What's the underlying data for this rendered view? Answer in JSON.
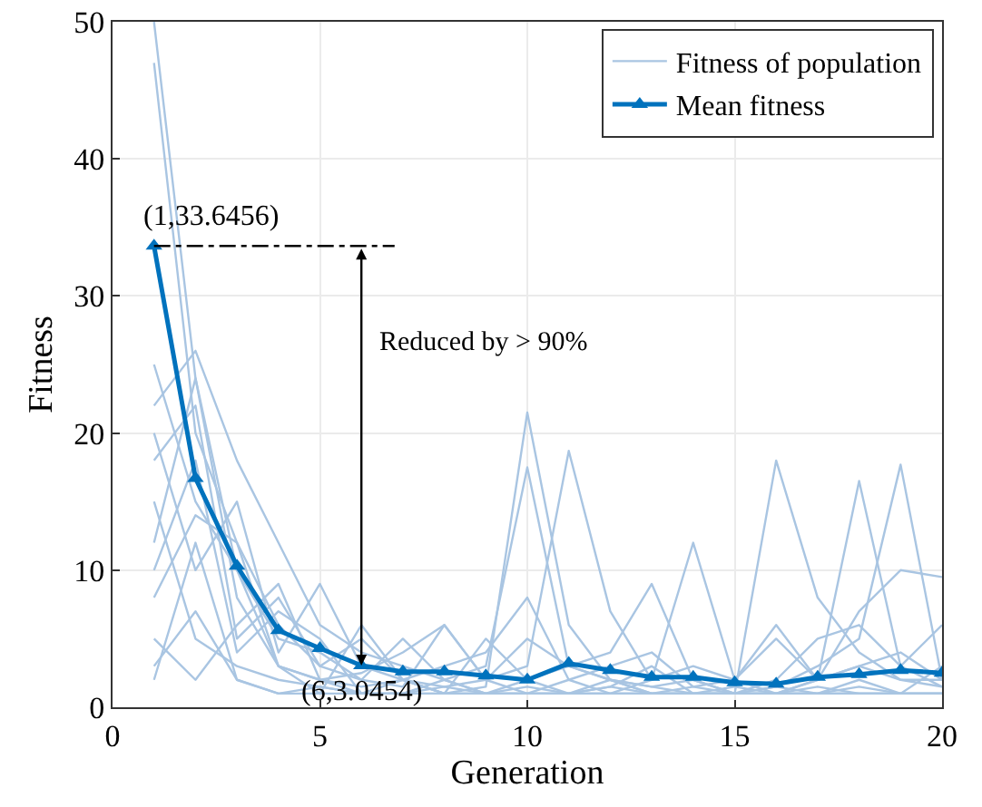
{
  "chart_data": {
    "type": "line",
    "xlabel": "Generation",
    "ylabel": "Fitness",
    "x": [
      1,
      2,
      3,
      4,
      5,
      6,
      7,
      8,
      9,
      10,
      11,
      12,
      13,
      14,
      15,
      16,
      17,
      18,
      19,
      20
    ],
    "xlim": [
      0,
      20
    ],
    "xticks": [
      0,
      5,
      10,
      15,
      20
    ],
    "ylim": [
      0,
      50
    ],
    "yticks": [
      0,
      10,
      20,
      30,
      40,
      50
    ],
    "grid": true,
    "legend": "top right",
    "series": [
      {
        "name": "Fitness of population",
        "color": "#a9c5e2",
        "marker": "none",
        "values": [
          50,
          24,
          8,
          3,
          2,
          1.5,
          2,
          1,
          1.5,
          21.5,
          6,
          2,
          1,
          1,
          1.5,
          1,
          2,
          3,
          2,
          1.5
        ]
      },
      {
        "color": "#a9c5e2",
        "marker": "none",
        "values": [
          47,
          20,
          12,
          6,
          3,
          2,
          5,
          2,
          3,
          17.5,
          3,
          2,
          1.5,
          2,
          1,
          18,
          8,
          4,
          2,
          2
        ]
      },
      {
        "color": "#a9c5e2",
        "marker": "none",
        "values": [
          25,
          15,
          10,
          5,
          4,
          2,
          1.5,
          6,
          2,
          3,
          18.7,
          7,
          2,
          3,
          2,
          5,
          2,
          16.5,
          3,
          1.5
        ]
      },
      {
        "color": "#a9c5e2",
        "marker": "none",
        "values": [
          22,
          26,
          18,
          12,
          6,
          4,
          3,
          2,
          1,
          2,
          3,
          4,
          9,
          2,
          1,
          1.5,
          3,
          5,
          17.7,
          2
        ]
      },
      {
        "color": "#a9c5e2",
        "marker": "none",
        "values": [
          20,
          10,
          15,
          4,
          9,
          3,
          2,
          3,
          4,
          8,
          2,
          1,
          2,
          12,
          2,
          1,
          2,
          7,
          10,
          9.5
        ]
      },
      {
        "color": "#a9c5e2",
        "marker": "none",
        "values": [
          18,
          22,
          5,
          8,
          3,
          5,
          2,
          1.5,
          2,
          1,
          2,
          3,
          4,
          1.5,
          1,
          2,
          5,
          6,
          3,
          6
        ]
      },
      {
        "color": "#a9c5e2",
        "marker": "none",
        "values": [
          15,
          5,
          3,
          2,
          1.5,
          1,
          1,
          2,
          1,
          1,
          1,
          1.5,
          1,
          1,
          1,
          1,
          1,
          1.5,
          1,
          1
        ]
      },
      {
        "color": "#a9c5e2",
        "marker": "none",
        "values": [
          12,
          24,
          10,
          3,
          2,
          2.5,
          4,
          6,
          2,
          5,
          3,
          2,
          1,
          1.5,
          2,
          6,
          2,
          3,
          4,
          2
        ]
      },
      {
        "color": "#a9c5e2",
        "marker": "none",
        "values": [
          10,
          18,
          4,
          7,
          5,
          1,
          2,
          1,
          1,
          1.5,
          1,
          2,
          1.5,
          1,
          1,
          1,
          1.5,
          1,
          1,
          1
        ]
      },
      {
        "color": "#a9c5e2",
        "marker": "none",
        "values": [
          8,
          14,
          12,
          3,
          1,
          6,
          2,
          1,
          5,
          2,
          1,
          1.5,
          3,
          1,
          1,
          1.5,
          1,
          2,
          1,
          3
        ]
      },
      {
        "color": "#a9c5e2",
        "marker": "none",
        "values": [
          5,
          2,
          6,
          9,
          2,
          1,
          1,
          1.5,
          1,
          1,
          1,
          1,
          1,
          1,
          1,
          1,
          1,
          1,
          1,
          1
        ]
      },
      {
        "color": "#a9c5e2",
        "marker": "none",
        "values": [
          3,
          7,
          2,
          1,
          1.5,
          1,
          1,
          1,
          1,
          1,
          1,
          1,
          1,
          1,
          1,
          1,
          1,
          1,
          1,
          1
        ]
      },
      {
        "color": "#a9c5e2",
        "marker": "none",
        "values": [
          2,
          12,
          2,
          1,
          1,
          1,
          1,
          1,
          1,
          1,
          1,
          1,
          1,
          1,
          1,
          1,
          1,
          1,
          1,
          1
        ]
      },
      {
        "name": "Mean fitness",
        "color": "#0072bd",
        "marker": "triangle",
        "values": [
          33.6456,
          16.7,
          10.3,
          5.6,
          4.3,
          3.0454,
          2.6,
          2.6,
          2.3,
          2.0,
          3.2,
          2.7,
          2.2,
          2.2,
          1.8,
          1.7,
          2.2,
          2.4,
          2.7,
          2.5
        ]
      }
    ],
    "annotations": [
      {
        "text": "(1,33.6456)",
        "x": 1,
        "y": 33.6456
      },
      {
        "text": "(6,3.0454)",
        "x": 6,
        "y": 3.0454
      },
      "Reduced by > 90%"
    ]
  }
}
